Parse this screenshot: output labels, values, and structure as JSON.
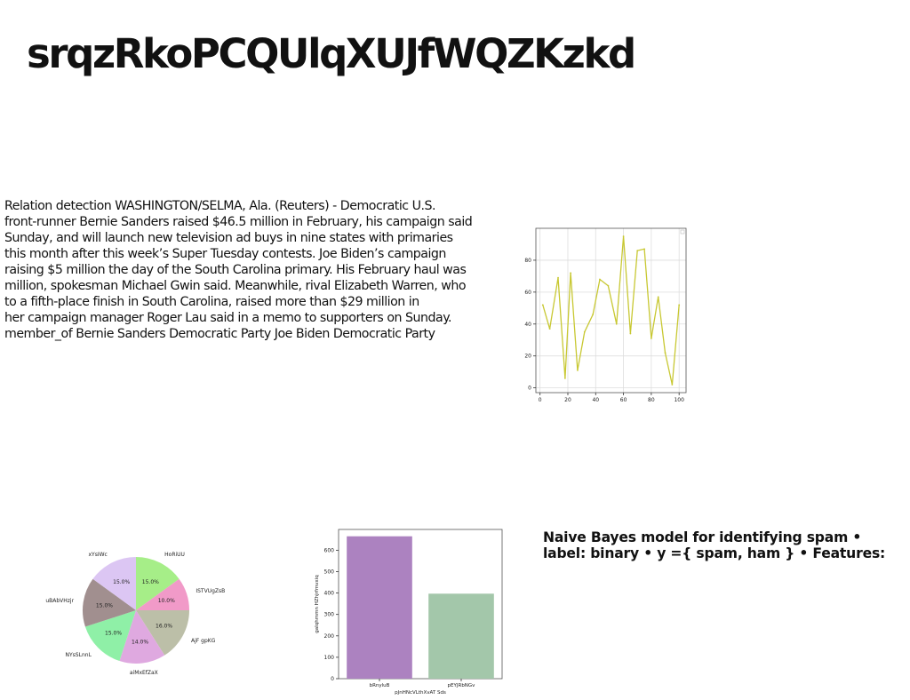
{
  "title": "srqzRkoPCQUlqXUJfWQZKzkd",
  "body_lines": [
    "Relation detection WASHINGTON/SELMA, Ala. (Reuters) - Democratic U.S.",
    "front-runner Bernie Sanders raised $46.5 million in February, his campaign said",
    "Sunday, and will launch new television ad buys in nine states with primaries",
    "this month after this week’s Super Tuesday contests. Joe Biden’s campaign",
    "raising $5 million the day of the South Carolina primary. His February haul was",
    "million, spokesman Michael Gwin said. Meanwhile, rival Elizabeth Warren, who",
    "to a fifth-place finish in South Carolina, raised more than $29 million in",
    "her campaign manager Roger Lau said in a memo to supporters on Sunday.",
    "member_of Bernie Sanders Democratic Party Joe Biden Democratic Party"
  ],
  "side_lines": [
    "Naive Bayes model for identifying spam •",
    "label: binary • y ={ spam, ham } • Features:"
  ],
  "chart_data": [
    {
      "type": "line",
      "color": "#c8c832",
      "x": [
        2,
        7,
        13,
        18,
        22,
        27,
        32,
        38,
        43,
        49,
        55,
        60,
        65,
        70,
        75,
        80,
        85,
        90,
        95,
        100
      ],
      "y": [
        52,
        37,
        69,
        6,
        72,
        11,
        35,
        46,
        68,
        64,
        40,
        95,
        34,
        86,
        87,
        31,
        57,
        22,
        2,
        52
      ],
      "xlim": [
        -3,
        105
      ],
      "ylim": [
        -3,
        100
      ],
      "xticks": [
        0,
        20,
        40,
        60,
        80,
        100
      ],
      "yticks": [
        0,
        20,
        40,
        60,
        80
      ],
      "grid": true
    },
    {
      "type": "pie",
      "slices": [
        {
          "label": "HoRiUU",
          "value": 15.0,
          "pct": "15.0%",
          "color": "#a6ee88"
        },
        {
          "label": "ISTVUgZsB",
          "value": 10.0,
          "pct": "10.0%",
          "color": "#f19ac8"
        },
        {
          "label": "AjF gpKG",
          "value": 16.0,
          "pct": "16.0%",
          "color": "#bcbfa8"
        },
        {
          "label": "aiMxEfZaX",
          "value": 14.0,
          "pct": "14.0%",
          "color": "#dfa9e0"
        },
        {
          "label": "NYsSLnnL",
          "value": 15.0,
          "pct": "15.0%",
          "color": "#8ff0a7"
        },
        {
          "label": "uBAbVHzjr",
          "value": 15.0,
          "pct": "15.0%",
          "color": "#a18f8f"
        },
        {
          "label": "xYsIWc",
          "value": 15.0,
          "pct": "15.0%",
          "color": "#dcc6f3"
        }
      ]
    },
    {
      "type": "bar",
      "categories": [
        "bRnyluB",
        "pEYJRbNGv"
      ],
      "values": [
        665,
        397
      ],
      "colors": [
        "#ac82c0",
        "#a3c7aa"
      ],
      "xlabel": "pJnHNcVLthXvAT Sds",
      "ylabel": "gaIqhmmn HZhjrfmvxiq",
      "ylim": [
        0,
        697
      ],
      "yticks": [
        0,
        100,
        200,
        300,
        400,
        500,
        600
      ]
    }
  ]
}
